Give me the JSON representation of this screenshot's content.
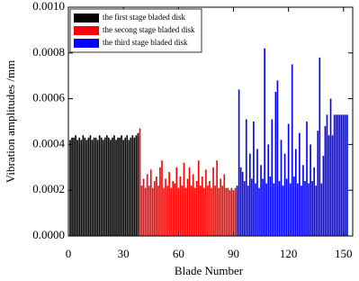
{
  "chart_data": {
    "type": "bar",
    "x_label": "Blade Number",
    "y_label": "Vibration amplitudes /mm",
    "xlim": [
      0,
      155
    ],
    "xticks": [
      0,
      30,
      60,
      90,
      120,
      150
    ],
    "ylim": [
      0,
      0.001
    ],
    "yticks": [
      {
        "value": 0,
        "label": "0.0000"
      },
      {
        "value": 0.0002,
        "label": "0.0002"
      },
      {
        "value": 0.0004,
        "label": "0.0004"
      },
      {
        "value": 0.0006,
        "label": "0.0006"
      },
      {
        "value": 0.0008,
        "label": "0.0008"
      },
      {
        "value": 0.001,
        "label": "0.0010"
      }
    ],
    "legend": "top-left",
    "series": [
      {
        "name": "the first stage bladed disk",
        "color": "#000000",
        "x": [
          1,
          2,
          3,
          4,
          5,
          6,
          7,
          8,
          9,
          10,
          11,
          12,
          13,
          14,
          15,
          16,
          17,
          18,
          19,
          20,
          21,
          22,
          23,
          24,
          25,
          26,
          27,
          28,
          29,
          30,
          31,
          32,
          33,
          34,
          35,
          36,
          37,
          38
        ],
        "values": [
          0.00042,
          0.00043,
          0.00043,
          0.00044,
          0.00042,
          0.00043,
          0.00042,
          0.00044,
          0.00043,
          0.00042,
          0.00043,
          0.00044,
          0.00042,
          0.00043,
          0.00043,
          0.00042,
          0.00044,
          0.00043,
          0.00042,
          0.00043,
          0.00044,
          0.00043,
          0.00042,
          0.00043,
          0.00044,
          0.00042,
          0.00043,
          0.00043,
          0.00044,
          0.00042,
          0.00043,
          0.00044,
          0.00042,
          0.00043,
          0.00044,
          0.00043,
          0.00044,
          0.00045
        ]
      },
      {
        "name": "the secong stage bladed disk",
        "color": "#ff0000",
        "x": [
          39,
          40,
          41,
          42,
          43,
          44,
          45,
          46,
          47,
          48,
          49,
          50,
          51,
          52,
          53,
          54,
          55,
          56,
          57,
          58,
          59,
          60,
          61,
          62,
          63,
          64,
          65,
          66,
          67,
          68,
          69,
          70,
          71,
          72,
          73,
          74,
          75,
          76,
          77,
          78,
          79,
          80,
          81,
          82,
          83,
          84,
          85,
          86,
          87,
          88,
          89,
          90,
          91
        ],
        "values": [
          0.00047,
          0.00022,
          0.00025,
          0.00021,
          0.00027,
          0.00022,
          0.00029,
          0.00021,
          0.00024,
          0.00026,
          0.00022,
          0.0003,
          0.00033,
          0.00021,
          0.00025,
          0.00022,
          0.00028,
          0.00021,
          0.00024,
          0.00023,
          0.0003,
          0.00021,
          0.00026,
          0.00022,
          0.00032,
          0.00021,
          0.00025,
          0.0003,
          0.00022,
          0.00027,
          0.00021,
          0.00024,
          0.00033,
          0.00022,
          0.00026,
          0.00021,
          0.00029,
          0.00022,
          0.00024,
          0.00021,
          0.0003,
          0.00022,
          0.00033,
          0.00021,
          0.00025,
          0.00022,
          0.00027,
          0.00021,
          0.00021,
          0.0002,
          0.00021,
          0.0002,
          0.00021
        ]
      },
      {
        "name": "the third stage bladed disk",
        "color": "#0000ff",
        "x": [
          92,
          93,
          94,
          95,
          96,
          97,
          98,
          99,
          100,
          101,
          102,
          103,
          104,
          105,
          106,
          107,
          108,
          109,
          110,
          111,
          112,
          113,
          114,
          115,
          116,
          117,
          118,
          119,
          120,
          121,
          122,
          123,
          124,
          125,
          126,
          127,
          128,
          129,
          130,
          131,
          132,
          133,
          134,
          135,
          136,
          137,
          138,
          139,
          140,
          141,
          142,
          143,
          144,
          145,
          146,
          147,
          148,
          149,
          150,
          151,
          152
        ],
        "values": [
          0.00022,
          0.00064,
          0.0003,
          0.00028,
          0.00024,
          0.00051,
          0.00022,
          0.00036,
          0.00025,
          0.0005,
          0.00023,
          0.00038,
          0.00021,
          0.00031,
          0.00025,
          0.00082,
          0.00023,
          0.0004,
          0.00026,
          0.00051,
          0.00023,
          0.00063,
          0.00068,
          0.00024,
          0.00042,
          0.00022,
          0.00036,
          0.00025,
          0.00049,
          0.00023,
          0.00075,
          0.00026,
          0.00038,
          0.00023,
          0.00045,
          0.00022,
          0.00031,
          0.00024,
          0.0005,
          0.00023,
          0.0004,
          0.00024,
          0.0003,
          0.00022,
          0.00046,
          0.00078,
          0.00023,
          0.00035,
          0.00048,
          0.00053,
          0.00044,
          0.0006,
          0.00044,
          0.00053,
          0.00053,
          0.00053,
          0.00053,
          0.00053,
          0.00053,
          0.00053,
          0.00053
        ]
      }
    ]
  }
}
